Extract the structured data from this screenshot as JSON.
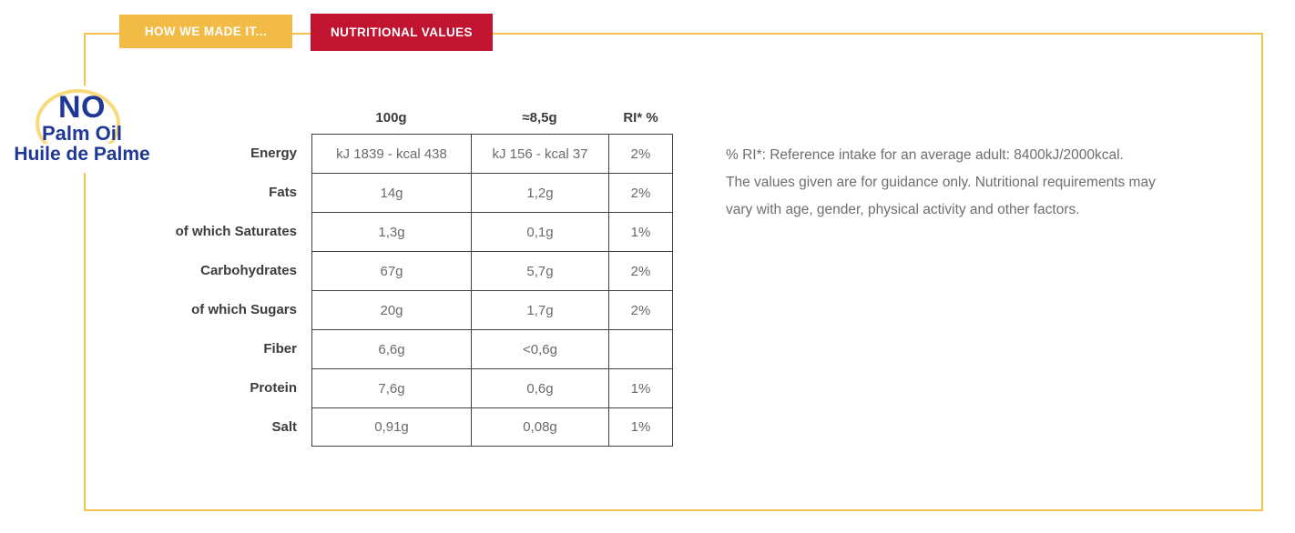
{
  "tabs": [
    {
      "label": "HOW WE MADE IT...",
      "color": "#F2BB45",
      "active": false
    },
    {
      "label": "NUTRITIONAL VALUES",
      "color": "#C01431",
      "active": true
    }
  ],
  "logo": {
    "line1": "NO",
    "line2": "Palm Oil",
    "line3": "Huile de Palme",
    "text_color": "#1F3796",
    "ring_color": "#F8DA7C"
  },
  "table": {
    "headers": [
      "100g",
      "≈8,5g",
      "RI* %"
    ],
    "rows": [
      {
        "label": "Energy",
        "per100": "kJ 1839 - kcal 438",
        "portion": "kJ 156 - kcal 37",
        "ri": "2%"
      },
      {
        "label": "Fats",
        "per100": "14g",
        "portion": "1,2g",
        "ri": "2%"
      },
      {
        "label": "of which Saturates",
        "per100": "1,3g",
        "portion": "0,1g",
        "ri": "1%"
      },
      {
        "label": "Carbohydrates",
        "per100": "67g",
        "portion": "5,7g",
        "ri": "2%"
      },
      {
        "label": "of which Sugars",
        "per100": "20g",
        "portion": "1,7g",
        "ri": "2%"
      },
      {
        "label": "Fiber",
        "per100": "6,6g",
        "portion": "<0,6g",
        "ri": ""
      },
      {
        "label": "Protein",
        "per100": "7,6g",
        "portion": "0,6g",
        "ri": "1%"
      },
      {
        "label": "Salt",
        "per100": "0,91g",
        "portion": "0,08g",
        "ri": "1%"
      }
    ]
  },
  "note": {
    "lines": [
      "% RI*: Reference intake for an average adult: 8400kJ/2000kcal.",
      "The values given are for guidance only. Nutritional requirements may",
      "vary with age, gender, physical activity and other factors."
    ]
  },
  "colors": {
    "panel_border": "#F2C14E",
    "tab_yellow": "#F2BB45",
    "tab_red": "#C01431",
    "logo_blue": "#1F3796",
    "table_border": "#404040",
    "label_text": "#3C3C3C",
    "value_text": "#6A6A6A",
    "note_text": "#6E6E6E"
  }
}
